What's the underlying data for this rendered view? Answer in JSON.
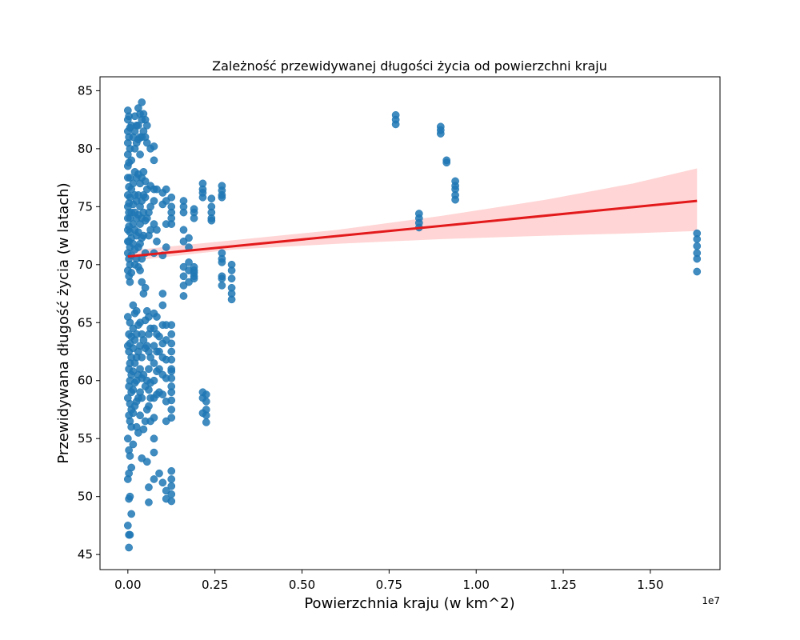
{
  "chart_data": {
    "type": "scatter",
    "title": "Zależność przewidywanej długości życia od powierzchni kraju",
    "xlabel": "Powierzchnia kraju (w km^2)",
    "ylabel": "Przewidywana długość życia (w latach)",
    "x_offset_label": "1e7",
    "x_scale": 10000000,
    "xlim": [
      -0.08,
      1.7
    ],
    "ylim": [
      43.7,
      86.2
    ],
    "x_ticks": [
      0.0,
      0.25,
      0.5,
      0.75,
      1.0,
      1.25,
      1.5
    ],
    "x_tick_labels": [
      "0.00",
      "0.25",
      "0.50",
      "0.75",
      "1.00",
      "1.25",
      "1.50"
    ],
    "y_ticks": [
      45,
      50,
      55,
      60,
      65,
      70,
      75,
      80,
      85
    ],
    "y_tick_labels": [
      "45",
      "50",
      "55",
      "60",
      "65",
      "70",
      "75",
      "80",
      "85"
    ],
    "grid": false,
    "point_color": "#1f77b4",
    "regression_color": "#e31a1c",
    "ci_color": "#ffb3b3",
    "series": [
      {
        "kind": "points",
        "x": [
          0.0,
          0.0,
          0.0,
          0.0,
          0.0,
          0.0,
          0.0,
          0.0,
          0.0,
          0.0,
          0.0,
          0.0,
          0.0,
          0.0,
          0.0,
          0.0,
          0.0,
          0.0,
          0.0,
          0.0,
          0.003,
          0.003,
          0.003,
          0.003,
          0.003,
          0.003,
          0.003,
          0.003,
          0.003,
          0.003,
          0.003,
          0.003,
          0.003,
          0.003,
          0.003,
          0.003,
          0.003,
          0.003,
          0.003,
          0.003,
          0.006,
          0.006,
          0.006,
          0.006,
          0.006,
          0.006,
          0.006,
          0.006,
          0.006,
          0.006,
          0.006,
          0.006,
          0.006,
          0.006,
          0.006,
          0.006,
          0.006,
          0.006,
          0.01,
          0.01,
          0.01,
          0.01,
          0.01,
          0.01,
          0.01,
          0.01,
          0.01,
          0.01,
          0.01,
          0.01,
          0.01,
          0.01,
          0.01,
          0.015,
          0.015,
          0.015,
          0.015,
          0.015,
          0.015,
          0.015,
          0.015,
          0.015,
          0.015,
          0.015,
          0.015,
          0.02,
          0.02,
          0.02,
          0.02,
          0.02,
          0.02,
          0.02,
          0.02,
          0.02,
          0.02,
          0.02,
          0.02,
          0.02,
          0.02,
          0.025,
          0.025,
          0.025,
          0.025,
          0.025,
          0.025,
          0.025,
          0.025,
          0.025,
          0.025,
          0.025,
          0.025,
          0.025,
          0.03,
          0.03,
          0.03,
          0.03,
          0.03,
          0.03,
          0.03,
          0.03,
          0.03,
          0.03,
          0.03,
          0.03,
          0.03,
          0.03,
          0.035,
          0.035,
          0.035,
          0.035,
          0.035,
          0.035,
          0.035,
          0.035,
          0.035,
          0.035,
          0.035,
          0.035,
          0.035,
          0.04,
          0.04,
          0.04,
          0.04,
          0.04,
          0.04,
          0.04,
          0.04,
          0.04,
          0.04,
          0.04,
          0.04,
          0.04,
          0.04,
          0.045,
          0.045,
          0.045,
          0.045,
          0.045,
          0.045,
          0.045,
          0.045,
          0.045,
          0.045,
          0.05,
          0.05,
          0.05,
          0.05,
          0.05,
          0.05,
          0.05,
          0.05,
          0.05,
          0.05,
          0.05,
          0.055,
          0.055,
          0.055,
          0.055,
          0.055,
          0.055,
          0.055,
          0.055,
          0.055,
          0.06,
          0.06,
          0.06,
          0.06,
          0.06,
          0.06,
          0.06,
          0.06,
          0.06,
          0.06,
          0.065,
          0.065,
          0.065,
          0.065,
          0.065,
          0.065,
          0.065,
          0.065,
          0.065,
          0.075,
          0.075,
          0.075,
          0.075,
          0.075,
          0.075,
          0.075,
          0.075,
          0.075,
          0.075,
          0.075,
          0.075,
          0.075,
          0.075,
          0.075,
          0.075,
          0.083,
          0.083,
          0.083,
          0.083,
          0.083,
          0.083,
          0.083,
          0.083,
          0.09,
          0.09,
          0.09,
          0.09,
          0.09,
          0.1,
          0.1,
          0.1,
          0.1,
          0.1,
          0.1,
          0.1,
          0.1,
          0.1,
          0.1,
          0.1,
          0.11,
          0.11,
          0.11,
          0.11,
          0.11,
          0.11,
          0.11,
          0.11,
          0.11,
          0.11,
          0.11,
          0.11,
          0.125,
          0.125,
          0.125,
          0.125,
          0.125,
          0.125,
          0.125,
          0.125,
          0.125,
          0.125,
          0.125,
          0.125,
          0.125,
          0.125,
          0.125,
          0.125,
          0.125,
          0.125,
          0.125,
          0.125,
          0.125,
          0.125,
          0.125,
          0.16,
          0.16,
          0.16,
          0.16,
          0.16,
          0.16,
          0.16,
          0.16,
          0.16,
          0.175,
          0.175,
          0.175,
          0.175,
          0.175,
          0.19,
          0.19,
          0.19,
          0.19,
          0.19,
          0.19,
          0.19,
          0.19,
          0.215,
          0.215,
          0.215,
          0.215,
          0.215,
          0.215,
          0.215,
          0.225,
          0.225,
          0.225,
          0.225,
          0.225,
          0.24,
          0.24,
          0.24,
          0.24,
          0.24,
          0.27,
          0.27,
          0.27,
          0.27,
          0.27,
          0.27,
          0.27,
          0.27,
          0.27,
          0.27,
          0.298,
          0.298,
          0.298,
          0.298,
          0.298,
          0.298,
          0.769,
          0.769,
          0.769,
          0.836,
          0.836,
          0.836,
          0.836,
          0.898,
          0.898,
          0.898,
          0.915,
          0.915,
          0.94,
          0.94,
          0.94,
          0.94,
          0.94,
          1.634,
          1.634,
          1.634,
          1.634,
          1.634,
          1.634
        ],
        "y": [
          83.3,
          82.5,
          81.5,
          80.5,
          79.5,
          78.5,
          77.5,
          76.0,
          75.0,
          74.0,
          73.0,
          72.0,
          71.0,
          69.5,
          65.5,
          63.0,
          58.5,
          55.0,
          51.5,
          47.5,
          82.8,
          81.0,
          78.8,
          76.7,
          75.3,
          74.5,
          73.3,
          72.0,
          70.5,
          69.0,
          64.0,
          62.5,
          61.0,
          59.5,
          57.0,
          54.0,
          52.0,
          49.8,
          46.7,
          45.6,
          81.8,
          80.0,
          77.5,
          75.8,
          74.0,
          72.8,
          71.5,
          70.0,
          68.5,
          65.0,
          63.2,
          61.5,
          60.0,
          58.0,
          56.5,
          53.5,
          50.0,
          46.7,
          82.0,
          79.0,
          76.5,
          74.5,
          72.3,
          70.8,
          69.3,
          63.8,
          62.0,
          60.5,
          59.0,
          57.5,
          56.0,
          52.5,
          48.5,
          81.0,
          77.0,
          75.2,
          73.5,
          71.8,
          66.5,
          64.5,
          62.8,
          60.8,
          59.2,
          57.2,
          54.5,
          82.8,
          81.5,
          80.0,
          78.0,
          76.0,
          74.5,
          73.0,
          71.3,
          70.0,
          65.8,
          63.5,
          61.5,
          59.8,
          57.8,
          82.0,
          80.5,
          77.5,
          75.5,
          74.0,
          72.5,
          70.5,
          66.0,
          64.0,
          62.0,
          60.0,
          58.2,
          56.0,
          83.5,
          82.0,
          80.8,
          77.8,
          76.0,
          74.3,
          72.8,
          71.5,
          69.8,
          64.8,
          62.5,
          60.5,
          58.5,
          55.5,
          83.0,
          81.0,
          79.5,
          77.0,
          75.0,
          73.5,
          71.8,
          69.5,
          65.0,
          63.0,
          61.0,
          59.0,
          57.0,
          84.0,
          82.5,
          81.0,
          77.5,
          75.5,
          74.0,
          72.3,
          70.5,
          68.5,
          64.0,
          62.0,
          60.2,
          58.5,
          53.3,
          83.0,
          81.5,
          78.0,
          76.0,
          74.5,
          72.5,
          67.5,
          63.5,
          60.5,
          55.8,
          82.5,
          81.0,
          77.2,
          75.8,
          73.8,
          71.0,
          68.0,
          65.2,
          62.8,
          59.5,
          56.5,
          82.0,
          80.5,
          76.5,
          74.0,
          66.0,
          63.0,
          60.0,
          57.5,
          53.0,
          74.5,
          72.5,
          65.5,
          64.0,
          62.5,
          61.0,
          59.2,
          57.8,
          50.8,
          49.5,
          80.0,
          76.8,
          75.0,
          73.0,
          64.5,
          62.0,
          59.8,
          58.5,
          56.5,
          80.2,
          79.0,
          76.5,
          75.5,
          73.5,
          71.0,
          65.8,
          64.5,
          63.0,
          61.5,
          60.0,
          58.5,
          56.8,
          55.0,
          53.8,
          51.5,
          76.5,
          73.0,
          72.0,
          65.5,
          64.0,
          62.5,
          60.8,
          58.8,
          63.8,
          62.5,
          61.0,
          59.0,
          52.0,
          76.2,
          75.2,
          70.8,
          67.5,
          66.5,
          64.8,
          63.2,
          62.0,
          60.5,
          58.8,
          51.2,
          76.5,
          75.5,
          73.5,
          71.5,
          64.8,
          63.5,
          61.8,
          60.2,
          58.2,
          56.5,
          50.5,
          49.8,
          75.8,
          75.0,
          74.5,
          74.0,
          73.5,
          64.8,
          64.0,
          63.2,
          62.5,
          61.8,
          61.0,
          60.2,
          59.5,
          59.0,
          58.3,
          57.5,
          56.8,
          52.2,
          51.5,
          50.9,
          50.2,
          49.6,
          60.8,
          75.5,
          75.0,
          74.5,
          73.0,
          72.0,
          69.8,
          69.0,
          68.2,
          67.3,
          72.3,
          71.5,
          70.2,
          69.5,
          68.5,
          74.8,
          74.5,
          74.0,
          69.8,
          69.5,
          69.0,
          68.8,
          69.3,
          77.0,
          76.5,
          75.8,
          76.2,
          59.0,
          58.5,
          57.2,
          58.2,
          57.5,
          57.0,
          56.4,
          58.8,
          75.7,
          75.0,
          74.5,
          74.0,
          73.8,
          76.8,
          76.4,
          76.0,
          75.8,
          71.0,
          70.5,
          70.2,
          69.0,
          68.8,
          68.2,
          70.0,
          69.5,
          68.8,
          68.0,
          67.5,
          67.0,
          82.9,
          82.5,
          82.1,
          74.4,
          74.0,
          73.6,
          73.2,
          81.9,
          81.6,
          81.3,
          79.0,
          78.8,
          77.2,
          76.8,
          76.5,
          76.0,
          75.6,
          72.7,
          72.2,
          71.6,
          71.0,
          70.5,
          69.4
        ]
      },
      {
        "kind": "regression",
        "x": [
          0.0,
          1.634
        ],
        "y": [
          70.7,
          75.5
        ]
      },
      {
        "kind": "confidence_band",
        "x": [
          0.0,
          0.3,
          0.6,
          0.9,
          1.2,
          1.45,
          1.634
        ],
        "upper": [
          71.2,
          72.1,
          73.0,
          74.2,
          75.6,
          77.0,
          78.3
        ],
        "lower": [
          70.3,
          71.3,
          71.8,
          72.2,
          72.5,
          72.7,
          72.9
        ]
      }
    ]
  }
}
